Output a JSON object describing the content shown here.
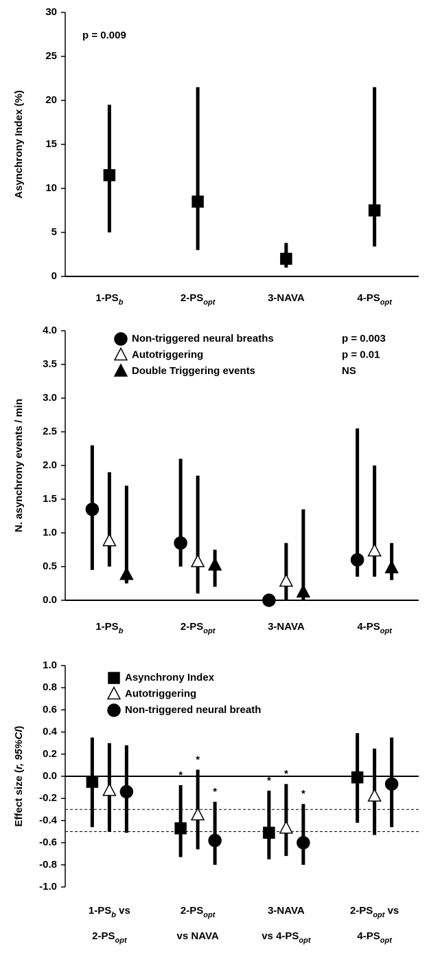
{
  "chart_data": [
    {
      "type": "errorbar",
      "ylabel": [
        "Asynchrony Index (%)"
      ],
      "annotation": "p = 0.009",
      "categories": [
        [
          [
            "1-PS",
            "b"
          ]
        ],
        [
          [
            "2-PS",
            "opt"
          ]
        ],
        [
          [
            "3-NAVA"
          ]
        ],
        [
          [
            "4-PS",
            "opt"
          ]
        ]
      ],
      "ylim": [
        0,
        30
      ],
      "yticks": [
        0,
        5,
        10,
        15,
        20,
        25,
        30
      ],
      "series": [
        {
          "marker": "square",
          "color": "#000000",
          "fill": "#000000",
          "values": [
            11.5,
            8.5,
            2,
            7.5
          ],
          "low": [
            5,
            3,
            1,
            3.4
          ],
          "high": [
            19.5,
            21.5,
            3.8,
            21.5
          ]
        }
      ]
    },
    {
      "type": "errorbar",
      "ylabel": [
        "N. asynchrony events / min"
      ],
      "categories": [
        [
          [
            "1-PS",
            "b"
          ]
        ],
        [
          [
            "2-PS",
            "opt"
          ]
        ],
        [
          [
            "3-NAVA"
          ]
        ],
        [
          [
            "4-PS",
            "opt"
          ]
        ]
      ],
      "ylim": [
        0,
        4
      ],
      "yticks": [
        {
          "value": 0,
          "label": "0.0"
        },
        {
          "value": 0.5,
          "label": "0.5"
        },
        {
          "value": 1,
          "label": "1.0"
        },
        {
          "value": 1.5,
          "label": "1.5"
        },
        {
          "value": 2,
          "label": "2.0"
        },
        {
          "value": 2.5,
          "label": "2.5"
        },
        {
          "value": 3,
          "label": "3.0"
        },
        {
          "value": 3.5,
          "label": "3.5"
        },
        {
          "value": 4,
          "label": "4.0"
        }
      ],
      "series": [
        {
          "name": "Non-triggered neural breaths",
          "p_value": "p = 0.003",
          "marker": "circle",
          "color": "#000000",
          "fill": "#000000",
          "values": [
            1.35,
            0.85,
            0,
            0.6
          ],
          "low": [
            0.45,
            0.5,
            0,
            0.35
          ],
          "high": [
            2.3,
            2.1,
            0,
            2.55
          ]
        },
        {
          "name": "Autotriggering",
          "p_value": "p = 0.01",
          "marker": "triangle",
          "color": "#000000",
          "fill": "#ffffff",
          "values": [
            0.88,
            0.57,
            0.28,
            0.73
          ],
          "low": [
            0.5,
            0.1,
            0,
            0.35
          ],
          "high": [
            1.9,
            1.85,
            0.85,
            2.0
          ]
        },
        {
          "name": "Double Triggering events",
          "p_value": "NS",
          "marker": "triangle",
          "color": "#000000",
          "fill": "#000000",
          "values": [
            0.38,
            0.52,
            0.12,
            0.48
          ],
          "low": [
            0.25,
            0.2,
            0,
            0.3
          ],
          "high": [
            1.7,
            0.75,
            1.35,
            0.85
          ]
        }
      ]
    },
    {
      "type": "errorbar",
      "ylabel": [
        "Effect size (",
        "r, 95%CI",
        ")"
      ],
      "categories": [
        [
          [
            "1-PS",
            "b",
            " vs"
          ],
          [
            "2-PS",
            "opt"
          ]
        ],
        [
          [
            "2-PS",
            "opt"
          ],
          [
            "vs NAVA"
          ]
        ],
        [
          [
            "3-NAVA"
          ],
          [
            "vs 4-PS",
            "opt"
          ]
        ],
        [
          [
            "2-PS",
            "opt",
            " vs"
          ],
          [
            "4-PS",
            "opt"
          ]
        ]
      ],
      "ylim": [
        -1,
        1
      ],
      "yticks": [
        {
          "value": -1,
          "label": "-1.0"
        },
        {
          "value": -0.8,
          "label": "-0.8"
        },
        {
          "value": -0.6,
          "label": "-0.6"
        },
        {
          "value": -0.4,
          "label": "-0.4"
        },
        {
          "value": -0.2,
          "label": "-0.2"
        },
        {
          "value": 0,
          "label": "0.0"
        },
        {
          "value": 0.2,
          "label": "0.2"
        },
        {
          "value": 0.4,
          "label": "0.4"
        },
        {
          "value": 0.6,
          "label": "0.6"
        },
        {
          "value": 0.8,
          "label": "0.8"
        },
        {
          "value": 1,
          "label": "1.0"
        }
      ],
      "hlines": [
        -0.3,
        -0.5
      ],
      "series": [
        {
          "name": "Asynchrony Index",
          "marker": "square",
          "color": "#000000",
          "fill": "#000000",
          "values": [
            -0.05,
            -0.47,
            -0.51,
            -0.01
          ],
          "low": [
            -0.46,
            -0.73,
            -0.75,
            -0.42
          ],
          "high": [
            0.35,
            -0.08,
            -0.13,
            0.39
          ],
          "significance": [
            null,
            "*",
            "*",
            null
          ]
        },
        {
          "name": "Autotriggering",
          "marker": "triangle",
          "color": "#000000",
          "fill": "#ffffff",
          "values": [
            -0.13,
            -0.35,
            -0.47,
            -0.18
          ],
          "low": [
            -0.5,
            -0.66,
            -0.72,
            -0.53
          ],
          "high": [
            0.3,
            0.06,
            -0.07,
            0.25
          ],
          "significance": [
            null,
            "*",
            "*",
            null
          ]
        },
        {
          "name": "Non-triggered neural breath",
          "marker": "circle",
          "color": "#000000",
          "fill": "#000000",
          "values": [
            -0.14,
            -0.58,
            -0.6,
            -0.07
          ],
          "low": [
            -0.51,
            -0.8,
            -0.8,
            -0.46
          ],
          "high": [
            0.28,
            -0.23,
            -0.25,
            0.35
          ],
          "significance": [
            null,
            "*",
            "*",
            null
          ]
        }
      ]
    }
  ]
}
